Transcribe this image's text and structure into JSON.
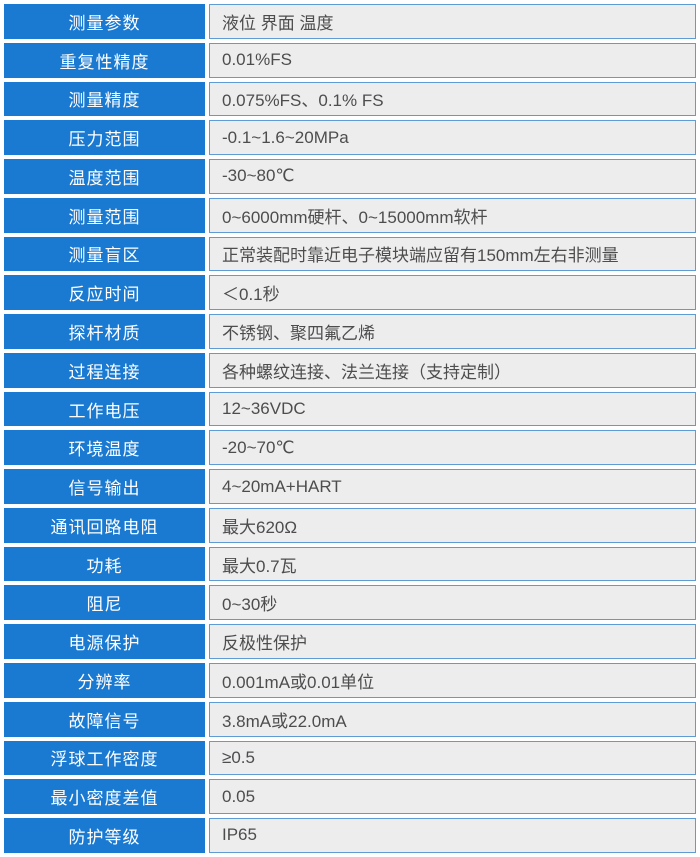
{
  "colors": {
    "label_bg": "#1a7ad2",
    "label_text": "#ffffff",
    "value_bg": "#ededed",
    "value_border": "#5e9cd3",
    "value_text": "#4d4d4d",
    "page_bg": "#ffffff"
  },
  "table": {
    "rows": [
      {
        "label": "测量参数",
        "value": "液位 界面 温度"
      },
      {
        "label": "重复性精度",
        "value": "0.01%FS"
      },
      {
        "label": "测量精度",
        "value": "0.075%FS、0.1% FS"
      },
      {
        "label": "压力范围",
        "value": "-0.1~1.6~20MPa"
      },
      {
        "label": "温度范围",
        "value": "-30~80℃"
      },
      {
        "label": "测量范围",
        "value": "0~6000mm硬杆、0~15000mm软杆"
      },
      {
        "label": "测量盲区",
        "value": "正常装配时靠近电子模块端应留有150mm左右非测量"
      },
      {
        "label": "反应时间",
        "value": "＜0.1秒"
      },
      {
        "label": "探杆材质",
        "value": "不锈钢、聚四氟乙烯"
      },
      {
        "label": "过程连接",
        "value": "各种螺纹连接、法兰连接（支持定制）"
      },
      {
        "label": "工作电压",
        "value": "12~36VDC"
      },
      {
        "label": "环境温度",
        "value": "-20~70℃"
      },
      {
        "label": "信号输出",
        "value": "4~20mA+HART"
      },
      {
        "label": "通讯回路电阻",
        "value": "最大620Ω"
      },
      {
        "label": "功耗",
        "value": "最大0.7瓦"
      },
      {
        "label": "阻尼",
        "value": "0~30秒"
      },
      {
        "label": "电源保护",
        "value": "反极性保护"
      },
      {
        "label": "分辨率",
        "value": "0.001mA或0.01单位"
      },
      {
        "label": "故障信号",
        "value": "3.8mA或22.0mA"
      },
      {
        "label": "浮球工作密度",
        "value": "≥0.5"
      },
      {
        "label": "最小密度差值",
        "value": "0.05"
      },
      {
        "label": "防护等级",
        "value": "IP65"
      }
    ]
  }
}
